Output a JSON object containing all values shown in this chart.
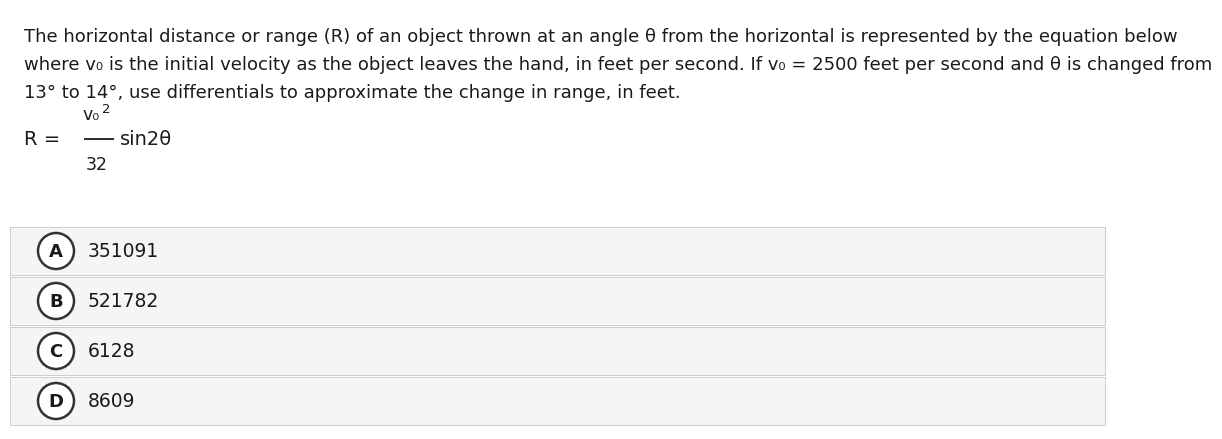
{
  "background_color": "#ffffff",
  "text_color": "#1a1a1a",
  "line1": "The horizontal distance or range (R) of an object thrown at an angle θ from the horizontal is represented by the equation below",
  "line2": "where v₀ is the initial velocity as the object leaves the hand, in feet per second. If v₀ = 2500 feet per second and θ is changed from",
  "line3": "13° to 14°, use differentials to approximate the change in range, in feet.",
  "options": [
    {
      "label": "A",
      "value": "351091"
    },
    {
      "label": "B",
      "value": "521782"
    },
    {
      "label": "C",
      "value": "6128"
    },
    {
      "label": "D",
      "value": "8609"
    }
  ],
  "option_bg_color": "#f5f5f5",
  "option_border_color": "#cccccc",
  "circle_edge_color": "#333333",
  "circle_fill_color": "#ffffff",
  "font_size_para": 13.0,
  "font_size_option_label": 13.0,
  "font_size_option_val": 13.5,
  "font_size_eq_main": 14.0,
  "font_size_eq_num": 12.5,
  "font_size_eq_sup": 9.5,
  "font_size_eq_den": 12.5
}
